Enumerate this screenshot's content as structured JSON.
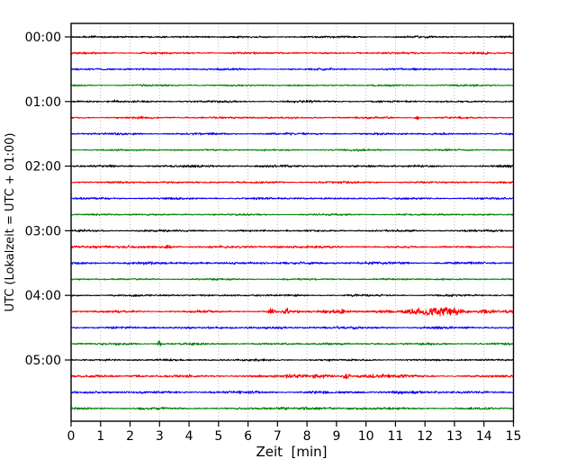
{
  "figure": {
    "background": "#ffffff",
    "kind": "helicorder seismogram drum plot"
  },
  "chart_data": {
    "type": "line",
    "subtype": "seismogram-helicorder",
    "title": "",
    "xlabel": "Zeit  [min]",
    "ylabel": "UTC (Lokalzeit = UTC + 01:00)",
    "xlim": [
      0,
      15
    ],
    "minutes_per_line": 15,
    "grid": "vertical-dotted",
    "legend": "none",
    "xticks": [
      "0",
      "1",
      "2",
      "3",
      "4",
      "5",
      "6",
      "7",
      "8",
      "9",
      "10",
      "11",
      "12",
      "13",
      "14",
      "15"
    ],
    "yticks": [
      "00:00",
      "01:00",
      "02:00",
      "03:00",
      "04:00",
      "05:00"
    ],
    "colors": {
      "black": "#000000",
      "red": "#ff0000",
      "blue": "#0000ff",
      "green": "#008000",
      "grid": "#aaaaaa",
      "axis": "#000000",
      "background": "#ffffff"
    },
    "traces": [
      {
        "time": "00:00",
        "color": "black",
        "noise": 0.9,
        "bursts": []
      },
      {
        "time": "00:15",
        "color": "red",
        "noise": 0.9,
        "bursts": []
      },
      {
        "time": "00:30",
        "color": "blue",
        "noise": 0.9,
        "bursts": []
      },
      {
        "time": "00:45",
        "color": "green",
        "noise": 0.8,
        "bursts": []
      },
      {
        "time": "01:00",
        "color": "black",
        "noise": 0.9,
        "bursts": [
          {
            "t": 1.5,
            "w": 0.05,
            "a": 1.6
          }
        ]
      },
      {
        "time": "01:15",
        "color": "red",
        "noise": 0.9,
        "bursts": [
          {
            "t": 11.75,
            "w": 0.07,
            "a": 2.2
          }
        ]
      },
      {
        "time": "01:30",
        "color": "blue",
        "noise": 0.9,
        "bursts": []
      },
      {
        "time": "01:45",
        "color": "green",
        "noise": 0.8,
        "bursts": []
      },
      {
        "time": "02:00",
        "color": "black",
        "noise": 1.0,
        "bursts": [
          {
            "t": 3.5,
            "w": 1.2,
            "a": 0.6
          }
        ]
      },
      {
        "time": "02:15",
        "color": "red",
        "noise": 0.9,
        "bursts": []
      },
      {
        "time": "02:30",
        "color": "blue",
        "noise": 0.9,
        "bursts": []
      },
      {
        "time": "02:45",
        "color": "green",
        "noise": 0.8,
        "bursts": []
      },
      {
        "time": "03:00",
        "color": "black",
        "noise": 0.9,
        "bursts": []
      },
      {
        "time": "03:15",
        "color": "red",
        "noise": 1.0,
        "bursts": [
          {
            "t": 1.5,
            "w": 1.4,
            "a": 0.8
          },
          {
            "t": 3.3,
            "w": 0.15,
            "a": 1.8
          },
          {
            "t": 6.9,
            "w": 0.4,
            "a": 1.0
          }
        ]
      },
      {
        "time": "03:30",
        "color": "blue",
        "noise": 1.1,
        "bursts": [
          {
            "t": 2.5,
            "w": 2.0,
            "a": 0.5
          }
        ]
      },
      {
        "time": "03:45",
        "color": "green",
        "noise": 0.8,
        "bursts": []
      },
      {
        "time": "04:00",
        "color": "black",
        "noise": 0.9,
        "bursts": []
      },
      {
        "time": "04:15",
        "color": "red",
        "noise": 1.0,
        "bursts": [
          {
            "t": 6.78,
            "w": 0.08,
            "a": 4.5
          },
          {
            "t": 7.3,
            "w": 0.07,
            "a": 3.5
          },
          {
            "t": 8.8,
            "w": 0.35,
            "a": 1.8
          },
          {
            "t": 9.2,
            "w": 0.1,
            "a": 2.0
          },
          {
            "t": 10.7,
            "w": 0.25,
            "a": 1.4
          },
          {
            "t": 11.7,
            "w": 0.35,
            "a": 3.2
          },
          {
            "t": 12.55,
            "w": 0.45,
            "a": 4.8
          },
          {
            "t": 13.2,
            "w": 0.2,
            "a": 2.5
          },
          {
            "t": 14.1,
            "w": 0.25,
            "a": 2.2
          },
          {
            "t": 14.8,
            "w": 0.2,
            "a": 1.5
          }
        ]
      },
      {
        "time": "04:30",
        "color": "blue",
        "noise": 1.0,
        "bursts": [
          {
            "t": 4.5,
            "w": 0.5,
            "a": 0.8
          },
          {
            "t": 8.5,
            "w": 0.8,
            "a": 0.7
          }
        ]
      },
      {
        "time": "04:45",
        "color": "green",
        "noise": 0.9,
        "bursts": [
          {
            "t": 2.0,
            "w": 0.3,
            "a": 0.8
          },
          {
            "t": 3.0,
            "w": 0.05,
            "a": 3.5
          },
          {
            "t": 4.3,
            "w": 0.3,
            "a": 0.7
          },
          {
            "t": 9.0,
            "w": 0.5,
            "a": 0.7
          }
        ]
      },
      {
        "time": "05:00",
        "color": "black",
        "noise": 0.9,
        "bursts": []
      },
      {
        "time": "05:15",
        "color": "red",
        "noise": 1.0,
        "bursts": [
          {
            "t": 2.2,
            "w": 0.25,
            "a": 1.0
          },
          {
            "t": 4.0,
            "w": 0.2,
            "a": 0.9
          },
          {
            "t": 7.6,
            "w": 0.5,
            "a": 1.8
          },
          {
            "t": 8.4,
            "w": 0.3,
            "a": 1.6
          },
          {
            "t": 9.35,
            "w": 0.07,
            "a": 4.2
          },
          {
            "t": 10.3,
            "w": 0.5,
            "a": 1.8
          },
          {
            "t": 11.2,
            "w": 0.3,
            "a": 1.0
          }
        ]
      },
      {
        "time": "05:30",
        "color": "blue",
        "noise": 1.1,
        "bursts": [
          {
            "t": 11.3,
            "w": 0.6,
            "a": 1.0
          }
        ]
      },
      {
        "time": "05:45",
        "color": "green",
        "noise": 0.9,
        "bursts": [
          {
            "t": 2.5,
            "w": 0.5,
            "a": 0.7
          },
          {
            "t": 7.5,
            "w": 1.2,
            "a": 0.9
          },
          {
            "t": 9.5,
            "w": 0.8,
            "a": 0.8
          }
        ]
      }
    ]
  }
}
